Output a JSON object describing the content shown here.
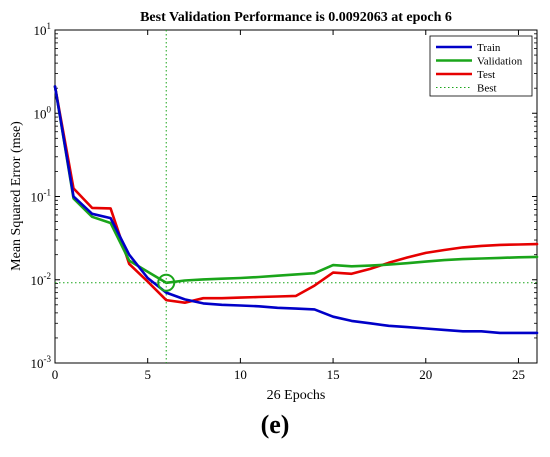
{
  "chart_data": {
    "type": "line",
    "title": "Best Validation Performance is 0.0092063 at epoch 6",
    "xlabel": "26 Epochs",
    "ylabel": "Mean Squared Error  (mse)",
    "xlim": [
      0,
      26
    ],
    "ylim": [
      0.001,
      10
    ],
    "yscale": "log",
    "x_ticks": [
      0,
      5,
      10,
      15,
      20,
      25
    ],
    "y_ticks": [
      {
        "value": 0.001,
        "base": "10",
        "exp": "-3"
      },
      {
        "value": 0.01,
        "base": "10",
        "exp": "-2"
      },
      {
        "value": 0.1,
        "base": "10",
        "exp": "-1"
      },
      {
        "value": 1,
        "base": "10",
        "exp": "0"
      },
      {
        "value": 10,
        "base": "10",
        "exp": "1"
      }
    ],
    "legend_position": "top-right",
    "x": [
      0,
      1,
      2,
      3,
      4,
      5,
      6,
      7,
      8,
      9,
      10,
      11,
      12,
      13,
      14,
      15,
      16,
      17,
      18,
      19,
      20,
      21,
      22,
      23,
      24,
      25,
      26
    ],
    "series": [
      {
        "name": "Train",
        "color": "#0000c8",
        "values": [
          2.1,
          0.1,
          0.062,
          0.055,
          0.02,
          0.0105,
          0.007,
          0.0058,
          0.0052,
          0.005,
          0.0049,
          0.0048,
          0.0046,
          0.0045,
          0.0044,
          0.0036,
          0.0032,
          0.003,
          0.0028,
          0.0027,
          0.0026,
          0.0025,
          0.0024,
          0.0024,
          0.0023,
          0.0023,
          0.0023
        ]
      },
      {
        "name": "Validation",
        "color": "#1aa51a",
        "values": [
          2.1,
          0.095,
          0.057,
          0.048,
          0.017,
          0.0125,
          0.0092,
          0.0098,
          0.0101,
          0.0103,
          0.0105,
          0.0108,
          0.0112,
          0.0116,
          0.012,
          0.015,
          0.0145,
          0.0148,
          0.0152,
          0.0158,
          0.0165,
          0.0172,
          0.0177,
          0.018,
          0.0183,
          0.0186,
          0.0188
        ]
      },
      {
        "name": "Test",
        "color": "#e60000",
        "values": [
          2.1,
          0.125,
          0.073,
          0.072,
          0.0155,
          0.0095,
          0.0057,
          0.0053,
          0.006,
          0.006,
          0.0061,
          0.0062,
          0.0063,
          0.0064,
          0.0085,
          0.0122,
          0.0118,
          0.0135,
          0.016,
          0.0185,
          0.021,
          0.0228,
          0.0245,
          0.0255,
          0.0262,
          0.0265,
          0.0268
        ]
      }
    ],
    "best": {
      "name": "Best",
      "epoch": 6,
      "value": 0.0092063,
      "color": "#1aa51a"
    }
  },
  "panel_label": "(e)"
}
